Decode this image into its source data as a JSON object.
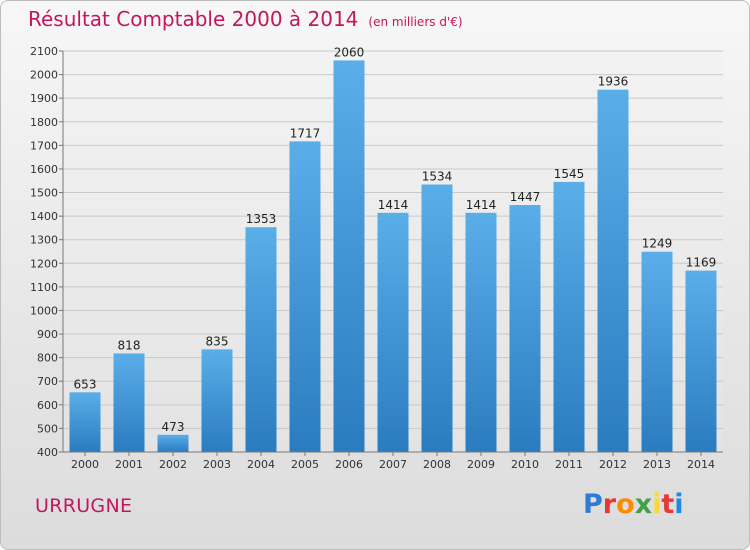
{
  "header": {
    "title": "Résultat Comptable 2000 à 2014",
    "subtitle": "(en milliers d'€)"
  },
  "footer": {
    "commune": "URRUGNE",
    "brand": "Proxiti",
    "brand_colors": [
      "#2e7bd3",
      "#e53935",
      "#fb8c00",
      "#43a047",
      "#fdd835",
      "#e53935",
      "#1e88e5"
    ]
  },
  "colors": {
    "accent": "#c2185b",
    "bar_top": "#5aaee8",
    "bar_bottom": "#2a7cc0"
  },
  "chart_data": {
    "type": "bar",
    "title": "Résultat Comptable 2000 à 2014",
    "subtitle": "(en milliers d'€)",
    "xlabel": "",
    "ylabel": "",
    "categories": [
      "2000",
      "2001",
      "2002",
      "2003",
      "2004",
      "2005",
      "2006",
      "2007",
      "2008",
      "2009",
      "2010",
      "2011",
      "2012",
      "2013",
      "2014"
    ],
    "values": [
      653,
      818,
      473,
      835,
      1353,
      1717,
      2060,
      1414,
      1534,
      1414,
      1447,
      1545,
      1936,
      1249,
      1169
    ],
    "ylim": [
      400,
      2100
    ],
    "yticks": [
      400,
      500,
      600,
      700,
      800,
      900,
      1000,
      1100,
      1200,
      1300,
      1400,
      1500,
      1600,
      1700,
      1800,
      1900,
      2000,
      2100
    ],
    "grid": true,
    "legend": "none"
  }
}
